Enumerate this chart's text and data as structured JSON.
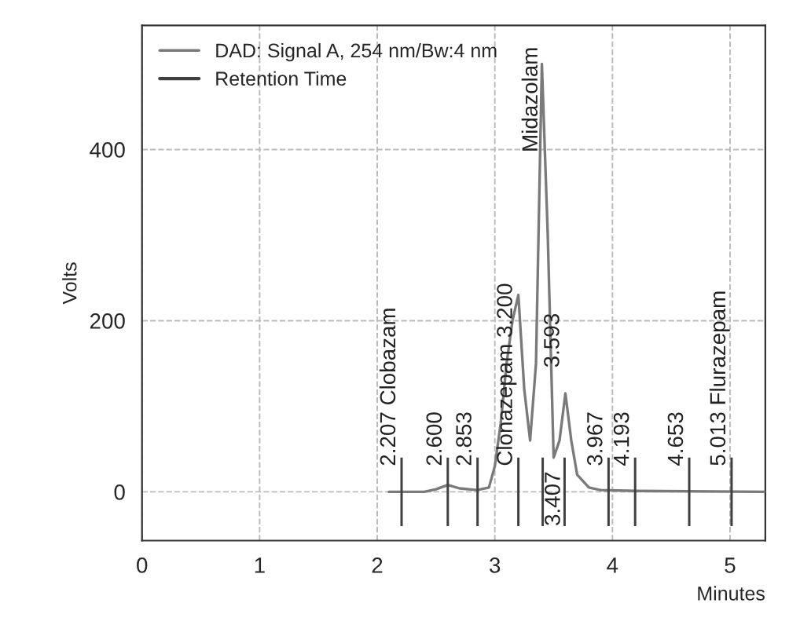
{
  "chart_data": {
    "type": "line",
    "xlabel": "Minutes",
    "ylabel": "Volts",
    "xlim": [
      0,
      5.3
    ],
    "ylim": [
      -57,
      545
    ],
    "xticks": [
      0,
      1,
      2,
      3,
      4,
      5
    ],
    "yticks": [
      0,
      200,
      400
    ],
    "grid": true,
    "legend": "top left",
    "series": [
      {
        "name": "DAD: Signal A, 254 nm/Bw:4 nm",
        "color": "#7a7a7a",
        "x": [
          2.1,
          2.4,
          2.5,
          2.6,
          2.7,
          2.85,
          2.95,
          3.0,
          3.05,
          3.1,
          3.15,
          3.2,
          3.25,
          3.3,
          3.35,
          3.4,
          3.45,
          3.5,
          3.55,
          3.6,
          3.65,
          3.7,
          3.8,
          3.9,
          4.2,
          5.3
        ],
        "values": [
          0,
          0,
          3,
          8,
          4,
          2,
          5,
          30,
          80,
          150,
          200,
          230,
          120,
          60,
          150,
          500,
          300,
          40,
          60,
          115,
          60,
          20,
          5,
          2,
          1,
          0
        ]
      },
      {
        "name": "Retention Time",
        "type": "bar",
        "color": "#404040",
        "x": [
          2.207,
          2.6,
          2.853,
          3.2,
          3.407,
          3.593,
          3.967,
          4.193,
          4.653,
          5.013
        ],
        "values": [
          80,
          80,
          80,
          80,
          80,
          80,
          80,
          80,
          80,
          80
        ],
        "base": [
          -40,
          -40,
          -40,
          -40,
          -40,
          -40,
          -40,
          -40,
          -40,
          -40
        ]
      }
    ],
    "annotations": [
      {
        "text": "2.207 Clobazam",
        "x": 2.207,
        "y": 0
      },
      {
        "text": "2.600",
        "x": 2.6,
        "y": 0
      },
      {
        "text": "2.853",
        "x": 2.853,
        "y": 0
      },
      {
        "text": "Clonazepam 3.200",
        "x": 3.2,
        "y": 0
      },
      {
        "text": "3.407",
        "x": 3.407,
        "y": -40
      },
      {
        "text": "Midazolam",
        "x": 3.4,
        "y": 500
      },
      {
        "text": "3.593",
        "x": 3.6,
        "y": 115
      },
      {
        "text": "3.967",
        "x": 3.967,
        "y": 0
      },
      {
        "text": "4.193",
        "x": 4.193,
        "y": 0
      },
      {
        "text": "4.653",
        "x": 4.653,
        "y": 0
      },
      {
        "text": "5.013 Flurazepam",
        "x": 5.013,
        "y": 0
      }
    ]
  }
}
